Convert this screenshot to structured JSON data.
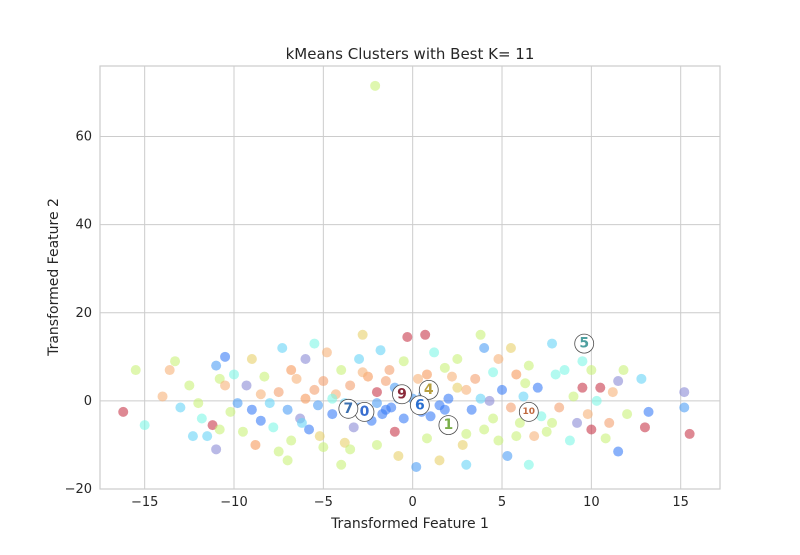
{
  "chart_data": {
    "type": "scatter",
    "title": "kMeans Clusters with Best K= 11",
    "xlabel": "Transformed Feature 1",
    "ylabel": "Transformed Feature 2",
    "xlim": [
      -17.5,
      17.2
    ],
    "ylim": [
      -20,
      76
    ],
    "xticks": [
      -15,
      -10,
      -5,
      0,
      5,
      10,
      15
    ],
    "yticks": [
      -20,
      0,
      20,
      40,
      60
    ],
    "xtick_labels": [
      "−15",
      "−10",
      "−5",
      "0",
      "5",
      "10",
      "15"
    ],
    "ytick_labels": [
      "−20",
      "0",
      "20",
      "40",
      "60"
    ],
    "grid": true,
    "cluster_colors": [
      "#3a7df7",
      "#c9f27a",
      "#8b8bd6",
      "#f79a5c",
      "#e8d06a",
      "#7ff7e6",
      "#4f9ff5",
      "#68d4f7",
      "#f7b37a",
      "#c8394b",
      "#f4a06f"
    ],
    "points": [
      {
        "x": -2.1,
        "y": 71.5,
        "c": 1
      },
      {
        "x": -16.2,
        "y": -2.5,
        "c": 9
      },
      {
        "x": -15.0,
        "y": -5.5,
        "c": 5
      },
      {
        "x": -15.5,
        "y": 7.0,
        "c": 1
      },
      {
        "x": -14.0,
        "y": 1.0,
        "c": 8
      },
      {
        "x": -13.6,
        "y": 7.0,
        "c": 8
      },
      {
        "x": -13.3,
        "y": 9.0,
        "c": 1
      },
      {
        "x": -13.0,
        "y": -1.5,
        "c": 7
      },
      {
        "x": -12.5,
        "y": 3.5,
        "c": 1
      },
      {
        "x": -12.3,
        "y": -8.0,
        "c": 7
      },
      {
        "x": -11.8,
        "y": -4.0,
        "c": 5
      },
      {
        "x": -11.5,
        "y": -8.0,
        "c": 7
      },
      {
        "x": -11.2,
        "y": -5.5,
        "c": 9
      },
      {
        "x": -11.0,
        "y": -11.0,
        "c": 2
      },
      {
        "x": -11.0,
        "y": 8.0,
        "c": 6
      },
      {
        "x": -10.8,
        "y": 5.0,
        "c": 1
      },
      {
        "x": -10.5,
        "y": 10.0,
        "c": 0
      },
      {
        "x": -10.5,
        "y": 3.5,
        "c": 8
      },
      {
        "x": -10.2,
        "y": -2.5,
        "c": 1
      },
      {
        "x": -10.0,
        "y": 6.0,
        "c": 5
      },
      {
        "x": -9.8,
        "y": -0.5,
        "c": 6
      },
      {
        "x": -9.5,
        "y": -7.0,
        "c": 1
      },
      {
        "x": -9.3,
        "y": 3.5,
        "c": 2
      },
      {
        "x": -9.0,
        "y": 9.5,
        "c": 4
      },
      {
        "x": -8.8,
        "y": -10.0,
        "c": 3
      },
      {
        "x": -8.5,
        "y": -4.5,
        "c": 0
      },
      {
        "x": -8.3,
        "y": 5.5,
        "c": 1
      },
      {
        "x": -8.0,
        "y": -0.5,
        "c": 7
      },
      {
        "x": -7.8,
        "y": -6.0,
        "c": 5
      },
      {
        "x": -7.5,
        "y": 2.0,
        "c": 10
      },
      {
        "x": -7.3,
        "y": 12.0,
        "c": 7
      },
      {
        "x": -7.0,
        "y": -2.0,
        "c": 6
      },
      {
        "x": -7.0,
        "y": -13.5,
        "c": 1
      },
      {
        "x": -6.8,
        "y": -9.0,
        "c": 1
      },
      {
        "x": -6.5,
        "y": 5.0,
        "c": 8
      },
      {
        "x": -6.3,
        "y": -4.0,
        "c": 2
      },
      {
        "x": -6.0,
        "y": 9.5,
        "c": 2
      },
      {
        "x": -6.0,
        "y": 0.5,
        "c": 3
      },
      {
        "x": -5.8,
        "y": -6.5,
        "c": 0
      },
      {
        "x": -5.5,
        "y": 13.0,
        "c": 5
      },
      {
        "x": -5.3,
        "y": -1.0,
        "c": 6
      },
      {
        "x": -5.0,
        "y": 4.5,
        "c": 10
      },
      {
        "x": -5.0,
        "y": -10.5,
        "c": 1
      },
      {
        "x": -4.8,
        "y": 11.0,
        "c": 8
      },
      {
        "x": -4.5,
        "y": -3.0,
        "c": 0
      },
      {
        "x": -4.3,
        "y": 1.5,
        "c": 8
      },
      {
        "x": -4.0,
        "y": 7.0,
        "c": 1
      },
      {
        "x": -4.0,
        "y": -14.5,
        "c": 1
      },
      {
        "x": -3.8,
        "y": -9.5,
        "c": 4
      },
      {
        "x": -3.5,
        "y": 3.5,
        "c": 10
      },
      {
        "x": -3.3,
        "y": -6.0,
        "c": 2
      },
      {
        "x": -3.0,
        "y": 9.5,
        "c": 7
      },
      {
        "x": -3.0,
        "y": -1.5,
        "c": 6
      },
      {
        "x": -2.8,
        "y": 15.0,
        "c": 4
      },
      {
        "x": -2.5,
        "y": 5.5,
        "c": 3
      },
      {
        "x": -2.3,
        "y": -4.5,
        "c": 0
      },
      {
        "x": -2.0,
        "y": 2.0,
        "c": 9
      },
      {
        "x": -2.0,
        "y": -10.0,
        "c": 1
      },
      {
        "x": -1.8,
        "y": 11.5,
        "c": 7
      },
      {
        "x": -1.5,
        "y": -2.0,
        "c": 0
      },
      {
        "x": -1.3,
        "y": 7.0,
        "c": 10
      },
      {
        "x": -1.0,
        "y": -7.0,
        "c": 9
      },
      {
        "x": -1.0,
        "y": 3.0,
        "c": 6
      },
      {
        "x": -0.8,
        "y": -12.5,
        "c": 4
      },
      {
        "x": -0.5,
        "y": 9.0,
        "c": 1
      },
      {
        "x": -0.5,
        "y": -4.0,
        "c": 0
      },
      {
        "x": -0.3,
        "y": 14.5,
        "c": 9
      },
      {
        "x": 0.0,
        "y": 0.5,
        "c": 6
      },
      {
        "x": 0.2,
        "y": -15.0,
        "c": 6
      },
      {
        "x": 0.3,
        "y": 5.0,
        "c": 8
      },
      {
        "x": 0.5,
        "y": -2.5,
        "c": 0
      },
      {
        "x": 0.7,
        "y": 15.0,
        "c": 9
      },
      {
        "x": 0.8,
        "y": -8.5,
        "c": 1
      },
      {
        "x": 1.0,
        "y": 3.5,
        "c": 4
      },
      {
        "x": 1.2,
        "y": 11.0,
        "c": 5
      },
      {
        "x": 1.5,
        "y": -1.0,
        "c": 0
      },
      {
        "x": 1.5,
        "y": -13.5,
        "c": 4
      },
      {
        "x": 1.8,
        "y": 7.5,
        "c": 1
      },
      {
        "x": 2.0,
        "y": 0.5,
        "c": 0
      },
      {
        "x": 2.2,
        "y": -5.5,
        "c": 1
      },
      {
        "x": 2.5,
        "y": 9.5,
        "c": 1
      },
      {
        "x": 2.8,
        "y": -10.0,
        "c": 4
      },
      {
        "x": 3.0,
        "y": 2.5,
        "c": 8
      },
      {
        "x": 3.0,
        "y": -14.5,
        "c": 7
      },
      {
        "x": 3.3,
        "y": -2.0,
        "c": 0
      },
      {
        "x": 3.5,
        "y": 5.0,
        "c": 10
      },
      {
        "x": 3.8,
        "y": 15.0,
        "c": 1
      },
      {
        "x": 4.0,
        "y": -6.5,
        "c": 1
      },
      {
        "x": 4.0,
        "y": 12.0,
        "c": 6
      },
      {
        "x": 4.3,
        "y": 0.0,
        "c": 2
      },
      {
        "x": 4.5,
        "y": -4.0,
        "c": 1
      },
      {
        "x": 4.5,
        "y": 6.5,
        "c": 5
      },
      {
        "x": 4.8,
        "y": -9.0,
        "c": 1
      },
      {
        "x": 5.0,
        "y": 2.5,
        "c": 0
      },
      {
        "x": 5.3,
        "y": -12.5,
        "c": 6
      },
      {
        "x": 5.5,
        "y": 12.0,
        "c": 4
      },
      {
        "x": 5.5,
        "y": -1.5,
        "c": 10
      },
      {
        "x": 5.8,
        "y": 6.0,
        "c": 3
      },
      {
        "x": 6.0,
        "y": -5.0,
        "c": 1
      },
      {
        "x": 6.2,
        "y": 1.0,
        "c": 7
      },
      {
        "x": 6.5,
        "y": -14.5,
        "c": 5
      },
      {
        "x": 6.5,
        "y": 8.0,
        "c": 1
      },
      {
        "x": 6.8,
        "y": -8.0,
        "c": 8
      },
      {
        "x": 7.0,
        "y": 3.0,
        "c": 0
      },
      {
        "x": 7.2,
        "y": -3.5,
        "c": 5
      },
      {
        "x": 7.5,
        "y": -7.0,
        "c": 1
      },
      {
        "x": 7.8,
        "y": 13.0,
        "c": 7
      },
      {
        "x": 8.0,
        "y": 6.0,
        "c": 5
      },
      {
        "x": 8.2,
        "y": -1.5,
        "c": 10
      },
      {
        "x": 8.5,
        "y": 7.0,
        "c": 5
      },
      {
        "x": 8.8,
        "y": -9.0,
        "c": 5
      },
      {
        "x": 9.0,
        "y": 1.0,
        "c": 1
      },
      {
        "x": 9.2,
        "y": -5.0,
        "c": 2
      },
      {
        "x": 9.5,
        "y": 9.0,
        "c": 5
      },
      {
        "x": 9.5,
        "y": 3.0,
        "c": 9
      },
      {
        "x": 9.8,
        "y": -3.0,
        "c": 8
      },
      {
        "x": 10.0,
        "y": -6.5,
        "c": 9
      },
      {
        "x": 10.0,
        "y": 7.0,
        "c": 1
      },
      {
        "x": 10.3,
        "y": 0.0,
        "c": 5
      },
      {
        "x": 10.5,
        "y": 3.0,
        "c": 9
      },
      {
        "x": 10.8,
        "y": -8.5,
        "c": 1
      },
      {
        "x": 11.0,
        "y": -5.0,
        "c": 10
      },
      {
        "x": 11.2,
        "y": 2.0,
        "c": 8
      },
      {
        "x": 11.5,
        "y": 4.5,
        "c": 2
      },
      {
        "x": 11.5,
        "y": -11.5,
        "c": 0
      },
      {
        "x": 11.8,
        "y": 7.0,
        "c": 1
      },
      {
        "x": 12.0,
        "y": -3.0,
        "c": 1
      },
      {
        "x": 12.8,
        "y": 5.0,
        "c": 7
      },
      {
        "x": 13.0,
        "y": -6.0,
        "c": 9
      },
      {
        "x": 13.2,
        "y": -2.5,
        "c": 0
      },
      {
        "x": 15.2,
        "y": 2.0,
        "c": 2
      },
      {
        "x": 15.2,
        "y": -1.5,
        "c": 6
      },
      {
        "x": 15.5,
        "y": -7.5,
        "c": 9
      },
      {
        "x": -2.5,
        "y": -2.5,
        "c": 0
      },
      {
        "x": -2.0,
        "y": -0.5,
        "c": 6
      },
      {
        "x": -1.7,
        "y": -3.0,
        "c": 0
      },
      {
        "x": -1.2,
        "y": -1.5,
        "c": 0
      },
      {
        "x": -0.8,
        "y": 0.5,
        "c": 6
      },
      {
        "x": 0.2,
        "y": -1.0,
        "c": 0
      },
      {
        "x": 0.6,
        "y": 1.5,
        "c": 6
      },
      {
        "x": 1.0,
        "y": -3.5,
        "c": 0
      },
      {
        "x": 1.8,
        "y": -2.0,
        "c": 0
      },
      {
        "x": -3.8,
        "y": -0.5,
        "c": 7
      },
      {
        "x": -4.5,
        "y": 0.5,
        "c": 5
      },
      {
        "x": -6.2,
        "y": -5.0,
        "c": 7
      },
      {
        "x": 3.8,
        "y": 0.5,
        "c": 7
      },
      {
        "x": 2.5,
        "y": 3.0,
        "c": 4
      },
      {
        "x": -1.5,
        "y": 4.5,
        "c": 10
      },
      {
        "x": -2.8,
        "y": 6.5,
        "c": 8
      },
      {
        "x": 0.8,
        "y": 6.0,
        "c": 3
      },
      {
        "x": 2.2,
        "y": 5.5,
        "c": 8
      },
      {
        "x": -5.5,
        "y": 2.5,
        "c": 10
      },
      {
        "x": -8.5,
        "y": 1.5,
        "c": 8
      },
      {
        "x": -12.0,
        "y": -0.5,
        "c": 1
      },
      {
        "x": -9.0,
        "y": -2.0,
        "c": 0
      },
      {
        "x": -6.8,
        "y": 7.0,
        "c": 3
      },
      {
        "x": 4.8,
        "y": 9.5,
        "c": 8
      },
      {
        "x": 6.3,
        "y": 4.0,
        "c": 1
      },
      {
        "x": 7.8,
        "y": -5.0,
        "c": 1
      },
      {
        "x": 5.8,
        "y": -8.0,
        "c": 1
      },
      {
        "x": 3.0,
        "y": -7.5,
        "c": 1
      },
      {
        "x": -3.5,
        "y": -11.0,
        "c": 1
      },
      {
        "x": -5.2,
        "y": -8.0,
        "c": 4
      },
      {
        "x": -7.5,
        "y": -11.5,
        "c": 1
      },
      {
        "x": -10.8,
        "y": -6.5,
        "c": 1
      }
    ],
    "centroids": [
      {
        "label": "0",
        "x": -2.7,
        "y": -2.5,
        "color": "#3a6fd0"
      },
      {
        "label": "1",
        "x": 2.0,
        "y": -5.5,
        "color": "#7aaf4a"
      },
      {
        "label": "4",
        "x": 0.9,
        "y": 2.5,
        "color": "#b8a040"
      },
      {
        "label": "5",
        "x": 9.6,
        "y": 13.0,
        "color": "#4fa0a0"
      },
      {
        "label": "6",
        "x": 0.4,
        "y": -1.0,
        "color": "#2a6fd0"
      },
      {
        "label": "7",
        "x": -3.6,
        "y": -1.8,
        "color": "#3a6fb0"
      },
      {
        "label": "9",
        "x": -0.6,
        "y": 1.5,
        "color": "#8a2a3a"
      },
      {
        "label": "10",
        "x": 6.5,
        "y": -2.5,
        "color": "#c06a40"
      }
    ]
  }
}
